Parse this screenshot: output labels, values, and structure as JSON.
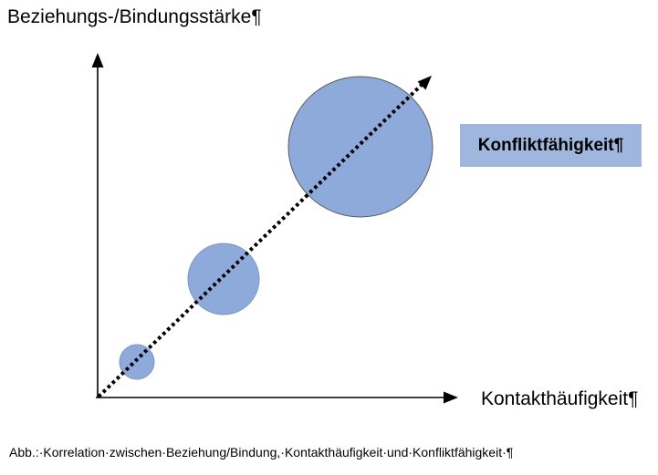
{
  "diagram": {
    "y_axis_title": "Beziehungs-/Bindungsstärke¶",
    "x_axis_title": "Kontakthäufigkeit¶",
    "highlight_label": "Konfliktfähigkeit¶",
    "caption": "Abb.:·Korrelation·zwischen·Beziehung/Bindung,·Kontakthäufigkeit·und·Konfliktfähigkeit·¶",
    "circle_count": 3,
    "colors": {
      "circle_fill": "#8eaadb",
      "circle_stroke": "#5a5a5a",
      "label_box_fill": "#9fb7de",
      "axis": "#000000",
      "trend_line": "#000000"
    }
  }
}
